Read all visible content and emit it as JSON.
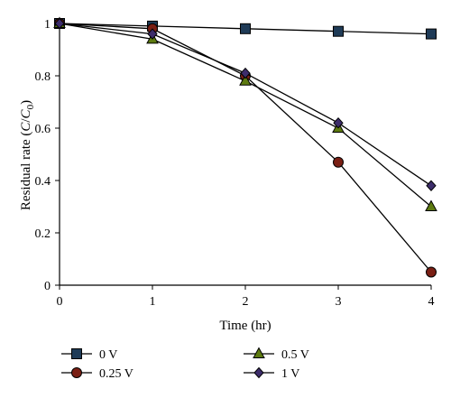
{
  "chart_data": {
    "type": "line",
    "xlabel": "Time (hr)",
    "ylabel_prefix": "Residual rate (",
    "ylabel_c": "C",
    "ylabel_slash": "/",
    "ylabel_c0_base": "C",
    "ylabel_c0_sub": "0",
    "ylabel_suffix": ")",
    "x": [
      0,
      1,
      2,
      3,
      4
    ],
    "x_ticks": [
      "0",
      "1",
      "2",
      "3",
      "4"
    ],
    "y_ticks": [
      "0",
      "0.2",
      "0.4",
      "0.6",
      "0.8",
      "1"
    ],
    "xlim": [
      0,
      4
    ],
    "ylim": [
      0,
      1
    ],
    "grid": false,
    "legend_position": "bottom",
    "series": [
      {
        "name": "0 V",
        "marker": "square",
        "color": "#1f3b57",
        "values": [
          1.0,
          0.99,
          0.98,
          0.97,
          0.96
        ]
      },
      {
        "name": "0.25 V",
        "marker": "circle",
        "color": "#7a1f14",
        "values": [
          1.0,
          0.98,
          0.8,
          0.47,
          0.05
        ]
      },
      {
        "name": "0.5 V",
        "marker": "triangle",
        "color": "#5d7a10",
        "values": [
          1.0,
          0.94,
          0.78,
          0.6,
          0.3
        ]
      },
      {
        "name": "1 V",
        "marker": "diamond",
        "color": "#3d2d6b",
        "values": [
          1.0,
          0.96,
          0.81,
          0.62,
          0.38
        ]
      }
    ]
  }
}
